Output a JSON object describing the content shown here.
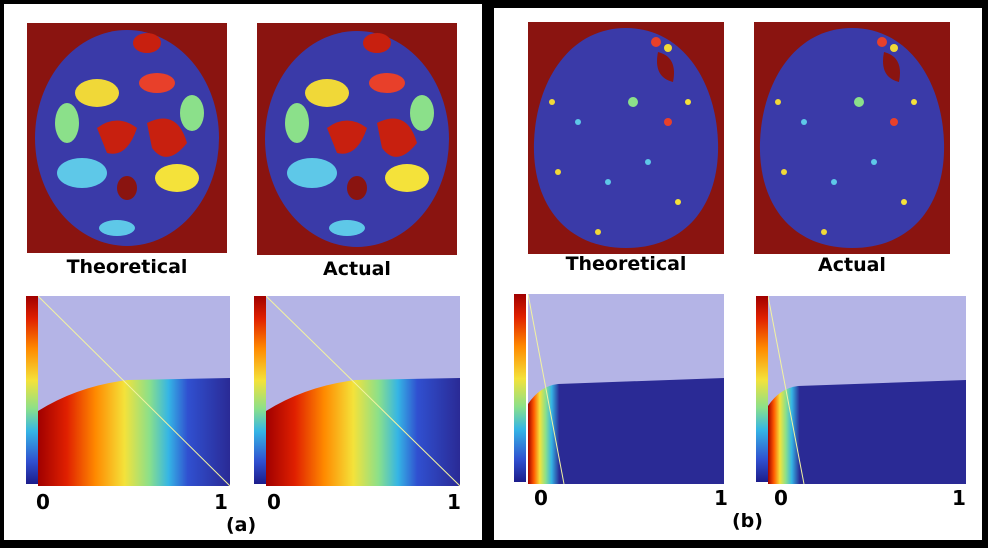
{
  "panels": [
    {
      "caption": "(a)",
      "brains": [
        {
          "label": "Theoretical"
        },
        {
          "label": "Actual"
        }
      ],
      "plots": [
        {
          "x_start_label": "0",
          "x_end_label": "1"
        },
        {
          "x_start_label": "0",
          "x_end_label": "1"
        }
      ]
    },
    {
      "caption": "(b)",
      "brains": [
        {
          "label": "Theoretical"
        },
        {
          "label": "Actual"
        }
      ],
      "plots": [
        {
          "x_start_label": "0",
          "x_end_label": "1"
        },
        {
          "x_start_label": "0",
          "x_end_label": "1"
        }
      ]
    }
  ],
  "colors": {
    "brain_background": "#8a1410",
    "plot_background": "#b4b4e6",
    "histogram_dark": "#2a2a95"
  }
}
